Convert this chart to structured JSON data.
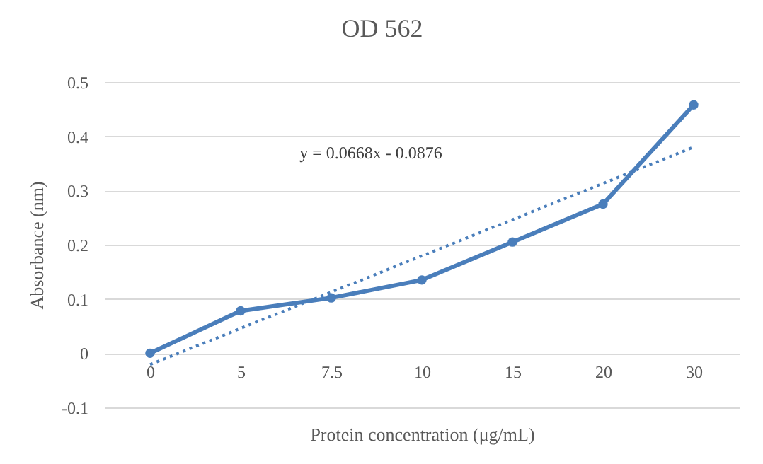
{
  "chart_data": {
    "type": "line",
    "title": "OD 562",
    "xlabel": "Protein concentration (μg/mL)",
    "ylabel": "Absorbance (nm)",
    "categories": [
      "0",
      "5",
      "7.5",
      "10",
      "15",
      "20",
      "30"
    ],
    "series": [
      {
        "color": "#4a7ebb",
        "values": [
          0,
          0.078,
          0.102,
          0.135,
          0.205,
          0.275,
          0.458
        ],
        "marker": "circle",
        "line_style": "solid"
      },
      {
        "type": "line",
        "color": "#4a7ebb",
        "x": [
          "0",
          "30"
        ],
        "values": [
          -0.021,
          0.38
        ],
        "marker": "none",
        "line_style": "dotted"
      }
    ],
    "ylim": [
      -0.1,
      0.5
    ],
    "yticks": [
      -0.1,
      0,
      0.1,
      0.2,
      0.3,
      0.4,
      0.5
    ],
    "grid": "y",
    "annotations": [
      "y = 0.0668x - 0.0876"
    ]
  }
}
